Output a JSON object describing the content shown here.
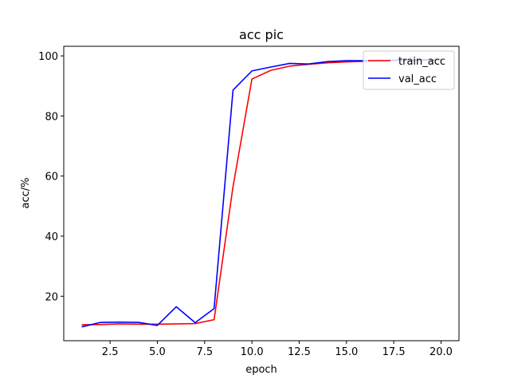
{
  "chart_data": {
    "type": "line",
    "title": "acc pic",
    "xlabel": "epoch",
    "ylabel": "acc/%",
    "xlim": [
      0.05,
      20.95
    ],
    "ylim": [
      5.2,
      103.2
    ],
    "x_ticks": [
      "2.5",
      "5.0",
      "7.5",
      "10.0",
      "12.5",
      "15.0",
      "17.5",
      "20.0"
    ],
    "y_ticks": [
      "20",
      "40",
      "60",
      "80",
      "100"
    ],
    "grid": false,
    "legend_position": "top-right",
    "x": [
      1,
      2,
      3,
      4,
      5,
      6,
      7,
      8,
      9,
      10,
      11,
      12,
      13,
      14,
      15,
      16,
      17,
      18,
      19,
      20
    ],
    "series": [
      {
        "name": "train_acc",
        "color": "#ff0000",
        "values": [
          10.5,
          10.6,
          10.8,
          10.7,
          10.7,
          10.8,
          10.9,
          12.2,
          56.5,
          92.3,
          95.2,
          96.6,
          97.2,
          97.7,
          98.0,
          98.2,
          98.4,
          98.5,
          98.6,
          98.7
        ]
      },
      {
        "name": "val_acc",
        "color": "#0000ff",
        "values": [
          9.8,
          11.3,
          11.4,
          11.3,
          10.3,
          16.5,
          11.2,
          15.9,
          88.6,
          95.0,
          96.3,
          97.5,
          97.3,
          98.1,
          98.4,
          98.4,
          98.5,
          98.6,
          98.7,
          98.8
        ]
      }
    ]
  }
}
